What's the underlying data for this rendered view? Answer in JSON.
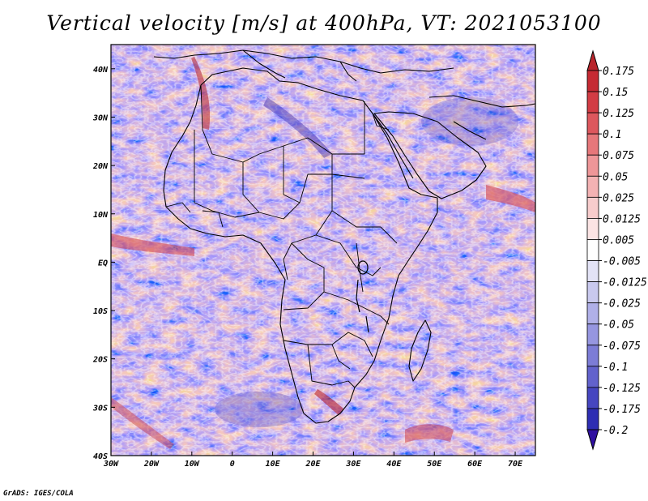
{
  "title": "Vertical velocity [m/s] at 400hPa, VT: 2021053100",
  "credit": "GrADS: IGES/COLA",
  "map": {
    "lon_range": [
      -30,
      75
    ],
    "lat_range": [
      -40,
      45
    ],
    "lon_ticks": [
      {
        "value": -30,
        "label": "30W"
      },
      {
        "value": -20,
        "label": "20W"
      },
      {
        "value": -10,
        "label": "10W"
      },
      {
        "value": 0,
        "label": "0"
      },
      {
        "value": 10,
        "label": "10E"
      },
      {
        "value": 20,
        "label": "20E"
      },
      {
        "value": 30,
        "label": "30E"
      },
      {
        "value": 40,
        "label": "40E"
      },
      {
        "value": 50,
        "label": "50E"
      },
      {
        "value": 60,
        "label": "60E"
      },
      {
        "value": 70,
        "label": "70E"
      }
    ],
    "lat_ticks": [
      {
        "value": 40,
        "label": "40N"
      },
      {
        "value": 30,
        "label": "30N"
      },
      {
        "value": 20,
        "label": "20N"
      },
      {
        "value": 10,
        "label": "10N"
      },
      {
        "value": 0,
        "label": "EQ"
      },
      {
        "value": -10,
        "label": "10S"
      },
      {
        "value": -20,
        "label": "20S"
      },
      {
        "value": -30,
        "label": "30S"
      },
      {
        "value": -40,
        "label": "40S"
      }
    ]
  },
  "colorbar": {
    "levels": [
      {
        "label": "0.175",
        "color": "#c52a33"
      },
      {
        "label": "0.15",
        "color": "#d23c44"
      },
      {
        "label": "0.125",
        "color": "#dd575d"
      },
      {
        "label": "0.1",
        "color": "#e6777a"
      },
      {
        "label": "0.075",
        "color": "#ee9698"
      },
      {
        "label": "0.05",
        "color": "#f3b2b3"
      },
      {
        "label": "0.025",
        "color": "#f7cccc"
      },
      {
        "label": "0.0125",
        "color": "#fbe4e4"
      },
      {
        "label": "0.005",
        "color": "#ffffff"
      },
      {
        "label": "-0.005",
        "color": "#e3e3f6"
      },
      {
        "label": "-0.0125",
        "color": "#c9c9ee"
      },
      {
        "label": "-0.025",
        "color": "#b0b0e8"
      },
      {
        "label": "-0.05",
        "color": "#9696e0"
      },
      {
        "label": "-0.075",
        "color": "#7c7cd6"
      },
      {
        "label": "-0.1",
        "color": "#6262cc"
      },
      {
        "label": "-0.125",
        "color": "#4646c0"
      },
      {
        "label": "-0.175",
        "color": "#2e2eb3"
      },
      {
        "label": "-0.2",
        "color": "#2a1aa8"
      }
    ],
    "top_color": "#b8252b",
    "bottom_color": "#3010a0"
  }
}
